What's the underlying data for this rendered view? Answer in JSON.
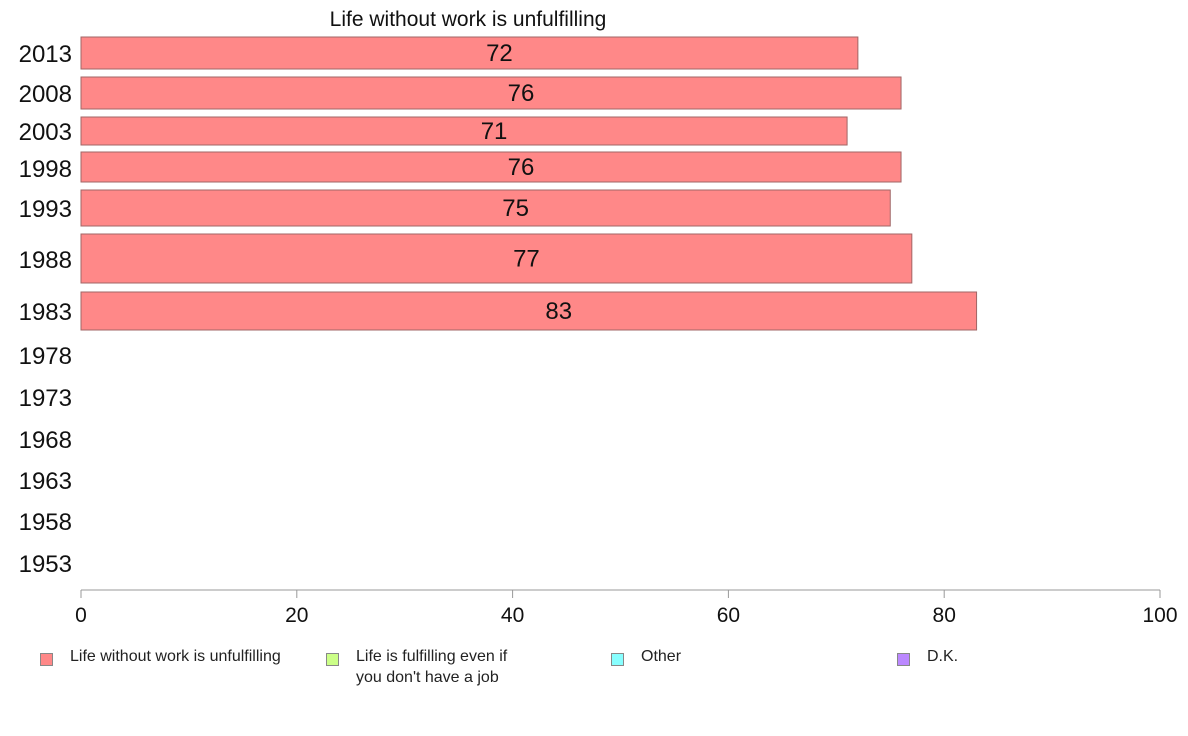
{
  "chart_data": {
    "type": "bar",
    "orientation": "horizontal",
    "title": "Life without work is unfulfilling",
    "categories": [
      "2013",
      "2008",
      "2003",
      "1998",
      "1993",
      "1988",
      "1983",
      "1978",
      "1973",
      "1968",
      "1963",
      "1958",
      "1953"
    ],
    "series": [
      {
        "name": "Life without work is unfulfilling",
        "color": "#ff8888",
        "values": [
          72,
          76,
          71,
          76,
          75,
          77,
          83,
          null,
          null,
          null,
          null,
          null,
          null
        ]
      }
    ],
    "data_labels": [
      "72",
      "76",
      "71",
      "76",
      "75",
      "77",
      "83"
    ],
    "xlim": [
      0,
      100
    ],
    "xticks": [
      "0",
      "20",
      "40",
      "60",
      "80",
      "100"
    ],
    "grid": false,
    "legend_position": "bottom",
    "legend": [
      {
        "label": "Life without work is unfulfilling",
        "color": "#ff8888"
      },
      {
        "label": "Life is fulfilling even if\nyou don't have a job",
        "color": "#ccff88"
      },
      {
        "label": "Other",
        "color": "#88ffff"
      },
      {
        "label": "D.K.",
        "color": "#bb88ff"
      }
    ]
  }
}
